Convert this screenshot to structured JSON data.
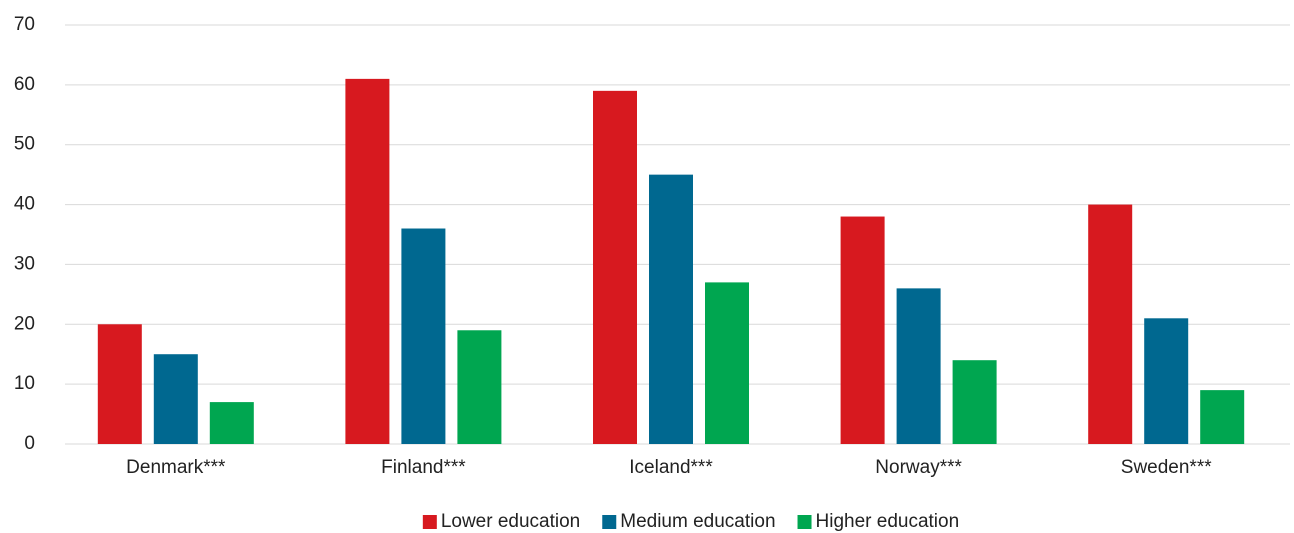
{
  "chart_data": {
    "type": "bar",
    "categories": [
      "Denmark***",
      "Finland***",
      "Iceland***",
      "Norway***",
      "Sweden***"
    ],
    "series": [
      {
        "name": "Lower education",
        "color": "#d7191f",
        "values": [
          20,
          61,
          59,
          38,
          40
        ]
      },
      {
        "name": "Medium education",
        "color": "#006890",
        "values": [
          15,
          36,
          45,
          26,
          21
        ]
      },
      {
        "name": "Higher education",
        "color": "#00a650",
        "values": [
          7,
          19,
          27,
          14,
          9
        ]
      }
    ],
    "ylim": [
      0,
      70
    ],
    "yticks": [
      0,
      10,
      20,
      30,
      40,
      50,
      60,
      70
    ],
    "grid": true,
    "legend": "bottom"
  }
}
